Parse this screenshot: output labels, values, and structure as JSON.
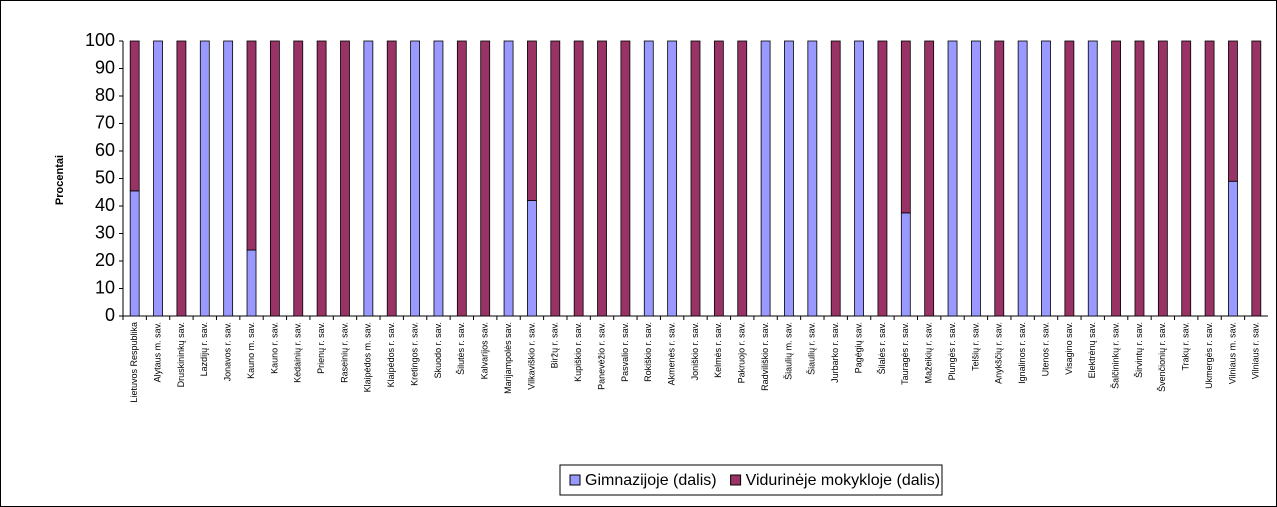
{
  "chart_data": {
    "type": "stacked_bar",
    "y_label": "Procentai",
    "categories": [
      "Lietuvos Respublika",
      "Alytaus m. sav.",
      "Druskininkų sav.",
      "Lazdijų r. sav.",
      "Jonavos r. sav.",
      "Kauno m. sav.",
      "Kauno r. sav.",
      "Kėdainių r. sav.",
      "Prienų r. sav.",
      "Raseinių r. sav.",
      "Klaipėdos m. sav.",
      "Klaipėdos r. sav.",
      "Kretingos r. sav.",
      "Skuodo r. sav.",
      "Šilutės r. sav.",
      "Kalvarijos sav.",
      "Marijampolės sav.",
      "Vilkaviškio r. sav.",
      "Biržų r. sav.",
      "Kupiškio r. sav.",
      "Panevėžio r. sav.",
      "Pasvalio r. sav.",
      "Rokiškio r. sav.",
      "Akmenės r. sav.",
      "Joniškio r. sav.",
      "Kelmės r. sav.",
      "Pakruojo r. sav.",
      "Radviliškio r. sav.",
      "Šiaulių m. sav.",
      "Šiaulių r. sav.",
      "Jurbarko r. sav.",
      "Pagėgių sav.",
      "Šilalės r. sav.",
      "Tauragės r. sav.",
      "Mažeikių r. sav.",
      "Plungės r. sav.",
      "Telšių r. sav.",
      "Anykščių r. sav.",
      "Ignalinos r. sav.",
      "Utenos r. sav.",
      "Visagino sav.",
      "Elektrėnų sav.",
      "Šalčininkų r. sav.",
      "Širvintų r. sav.",
      "Švenčionių r. sav.",
      "Trakų r. sav.",
      "Ukmergės r. sav.",
      "Vilniaus m. sav.",
      "Vilniaus r. sav."
    ],
    "series": [
      {
        "name": "Gimnazijoje (dalis)",
        "color": "#9999ff",
        "values": [
          45.5,
          100,
          0,
          100,
          100,
          24,
          0,
          0,
          0,
          0,
          100,
          0,
          100,
          100,
          0,
          0,
          100,
          42,
          0,
          0,
          0,
          0,
          100,
          100,
          0,
          0,
          0,
          100,
          100,
          100,
          0,
          100,
          0,
          37.5,
          0,
          100,
          100,
          0,
          100,
          100,
          0,
          100,
          0,
          0,
          0,
          0,
          0,
          49,
          0
        ]
      },
      {
        "name": "Vidurinėje mokykloje (dalis)",
        "color": "#993366",
        "values": [
          54.5,
          0,
          100,
          0,
          0,
          76,
          100,
          100,
          100,
          100,
          0,
          100,
          0,
          0,
          100,
          100,
          0,
          58,
          100,
          100,
          100,
          100,
          0,
          0,
          100,
          100,
          100,
          0,
          0,
          0,
          100,
          0,
          100,
          62.5,
          100,
          0,
          0,
          100,
          0,
          0,
          100,
          0,
          100,
          100,
          100,
          100,
          100,
          51,
          100
        ]
      }
    ],
    "ylim": [
      0,
      100
    ],
    "yticks": [
      0,
      10,
      20,
      30,
      40,
      50,
      60,
      70,
      80,
      90,
      100
    ],
    "legend": "bottom"
  }
}
